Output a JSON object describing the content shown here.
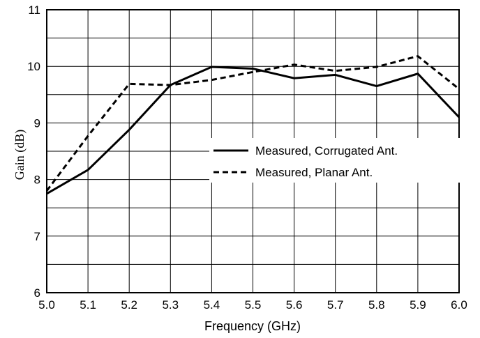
{
  "chart_data": {
    "type": "line",
    "title": "",
    "xlabel": "Frequency (GHz)",
    "ylabel": "Gain (dB)",
    "xlim": [
      5.0,
      6.0
    ],
    "ylim": [
      6,
      11
    ],
    "xticks": [
      "5.0",
      "5.1",
      "5.2",
      "5.3",
      "5.4",
      "5.5",
      "5.6",
      "5.7",
      "5.8",
      "5.9",
      "6.0"
    ],
    "yticks": [
      "6",
      "7",
      "8",
      "9",
      "10",
      "11"
    ],
    "grid": true,
    "legend_position": "center-right",
    "x": [
      5.0,
      5.1,
      5.2,
      5.3,
      5.4,
      5.5,
      5.6,
      5.7,
      5.8,
      5.9,
      6.0
    ],
    "series": [
      {
        "name": "Measured, Corrugated Ant.",
        "style": "solid",
        "values": [
          7.75,
          8.17,
          8.88,
          9.67,
          9.99,
          9.96,
          9.79,
          9.85,
          9.65,
          9.87,
          9.1
        ]
      },
      {
        "name": "Measured, Planar Ant.",
        "style": "dashed",
        "values": [
          7.8,
          8.77,
          9.69,
          9.67,
          9.76,
          9.9,
          10.03,
          9.92,
          9.99,
          10.18,
          9.6
        ]
      }
    ]
  }
}
